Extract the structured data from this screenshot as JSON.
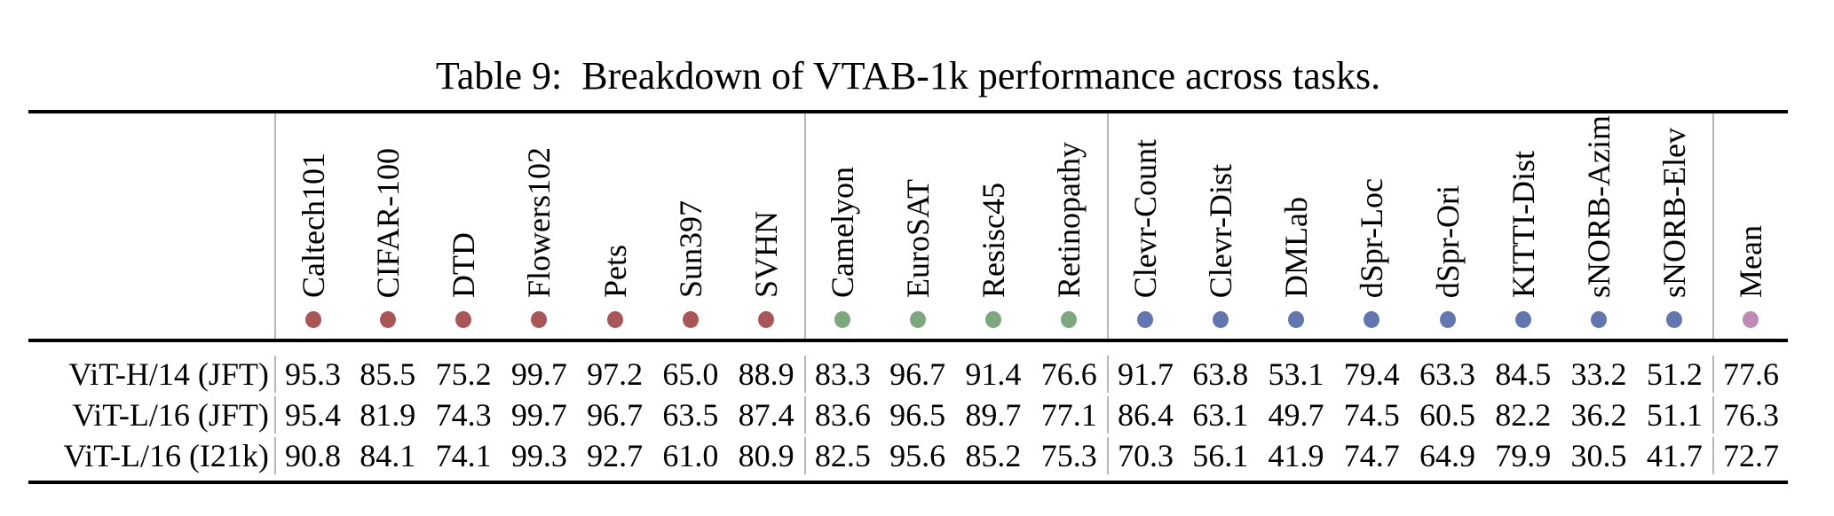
{
  "caption": "Table 9:  Breakdown of VTAB-1k performance across tasks.",
  "group_colors": {
    "natural": "#aa5656",
    "specialized": "#7da87d",
    "structured": "#6277b2",
    "mean": "#c189b5"
  },
  "table": {
    "headers": [
      {
        "label": "Caltech101",
        "group": "natural"
      },
      {
        "label": "CIFAR-100",
        "group": "natural"
      },
      {
        "label": "DTD",
        "group": "natural"
      },
      {
        "label": "Flowers102",
        "group": "natural"
      },
      {
        "label": "Pets",
        "group": "natural"
      },
      {
        "label": "Sun397",
        "group": "natural"
      },
      {
        "label": "SVHN",
        "group": "natural"
      },
      {
        "label": "Camelyon",
        "group": "specialized"
      },
      {
        "label": "EuroSAT",
        "group": "specialized"
      },
      {
        "label": "Resisc45",
        "group": "specialized"
      },
      {
        "label": "Retinopathy",
        "group": "specialized"
      },
      {
        "label": "Clevr-Count",
        "group": "structured"
      },
      {
        "label": "Clevr-Dist",
        "group": "structured"
      },
      {
        "label": "DMLab",
        "group": "structured"
      },
      {
        "label": "dSpr-Loc",
        "group": "structured"
      },
      {
        "label": "dSpr-Ori",
        "group": "structured"
      },
      {
        "label": "KITTI-Dist",
        "group": "structured"
      },
      {
        "label": "sNORB-Azim",
        "group": "structured"
      },
      {
        "label": "sNORB-Elev",
        "group": "structured"
      },
      {
        "label": "Mean",
        "group": "mean"
      }
    ],
    "rows": [
      {
        "label": "ViT-H/14 (JFT)",
        "values": [
          "95.3",
          "85.5",
          "75.2",
          "99.7",
          "97.2",
          "65.0",
          "88.9",
          "83.3",
          "96.7",
          "91.4",
          "76.6",
          "91.7",
          "63.8",
          "53.1",
          "79.4",
          "63.3",
          "84.5",
          "33.2",
          "51.2",
          "77.6"
        ]
      },
      {
        "label": "ViT-L/16 (JFT)",
        "values": [
          "95.4",
          "81.9",
          "74.3",
          "99.7",
          "96.7",
          "63.5",
          "87.4",
          "83.6",
          "96.5",
          "89.7",
          "77.1",
          "86.4",
          "63.1",
          "49.7",
          "74.5",
          "60.5",
          "82.2",
          "36.2",
          "51.1",
          "76.3"
        ]
      },
      {
        "label": "ViT-L/16 (I21k)",
        "values": [
          "90.8",
          "84.1",
          "74.1",
          "99.3",
          "92.7",
          "61.0",
          "80.9",
          "82.5",
          "95.6",
          "85.2",
          "75.3",
          "70.3",
          "56.1",
          "41.9",
          "74.7",
          "64.9",
          "79.9",
          "30.5",
          "41.7",
          "72.7"
        ]
      }
    ]
  }
}
